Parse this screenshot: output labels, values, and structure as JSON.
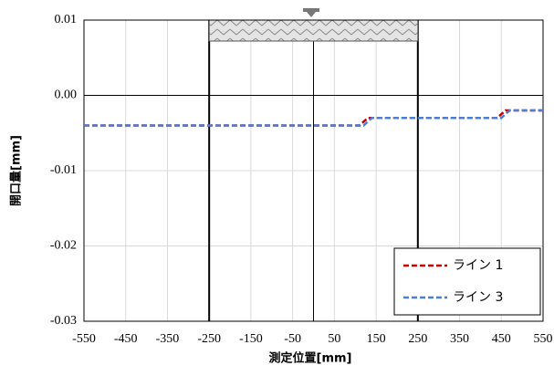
{
  "chart_data": {
    "type": "line",
    "x_label": "測定位置[mm]",
    "y_label": "開口量[mm]",
    "x": [
      -550,
      110,
      120,
      130,
      140,
      440,
      450,
      460,
      470,
      550
    ],
    "series": [
      {
        "name": "ライン 1",
        "color": "#c00000",
        "values": [
          -0.004,
          -0.004,
          -0.0035,
          -0.003,
          -0.003,
          -0.003,
          -0.0025,
          -0.002,
          -0.002,
          -0.002
        ]
      },
      {
        "name": "ライン 3",
        "color": "#4a7fd4",
        "values": [
          -0.004,
          -0.004,
          -0.004,
          -0.0035,
          -0.003,
          -0.003,
          -0.003,
          -0.0025,
          -0.002,
          -0.002
        ]
      }
    ],
    "xlim": [
      -550,
      550
    ],
    "xticks": [
      -550,
      -450,
      -350,
      -250,
      -150,
      -50,
      50,
      150,
      250,
      350,
      450,
      550
    ],
    "ylim": [
      -0.03,
      0.01
    ],
    "yticks": [
      0.01,
      {
        "value": 0,
        "label": "0.00"
      },
      -0.01,
      -0.02,
      -0.03
    ],
    "grid": true,
    "legend": "lower right"
  }
}
